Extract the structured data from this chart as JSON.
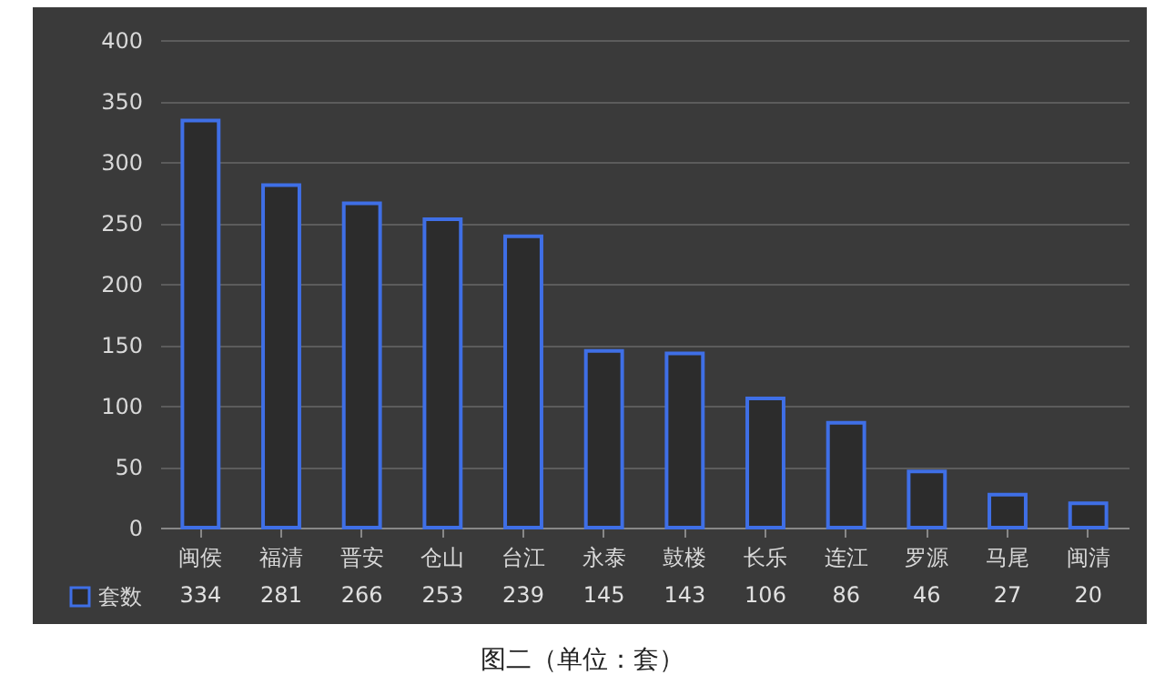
{
  "chart_data": {
    "type": "bar",
    "categories": [
      "闽侯",
      "福清",
      "晋安",
      "仓山",
      "台江",
      "永泰",
      "鼓楼",
      "长乐",
      "连江",
      "罗源",
      "马尾",
      "闽清"
    ],
    "series": [
      {
        "name": "套数",
        "color": "#3f6fe6",
        "values": [
          334,
          281,
          266,
          253,
          239,
          145,
          143,
          106,
          86,
          46,
          27,
          20
        ]
      }
    ],
    "ylim": [
      0,
      400
    ],
    "yticks": [
      0,
      50,
      100,
      150,
      200,
      250,
      300,
      350,
      400
    ],
    "grid": "y",
    "data_labels": true,
    "legend": "bottom left",
    "annotations": [
      "图二（单位：套）"
    ]
  }
}
